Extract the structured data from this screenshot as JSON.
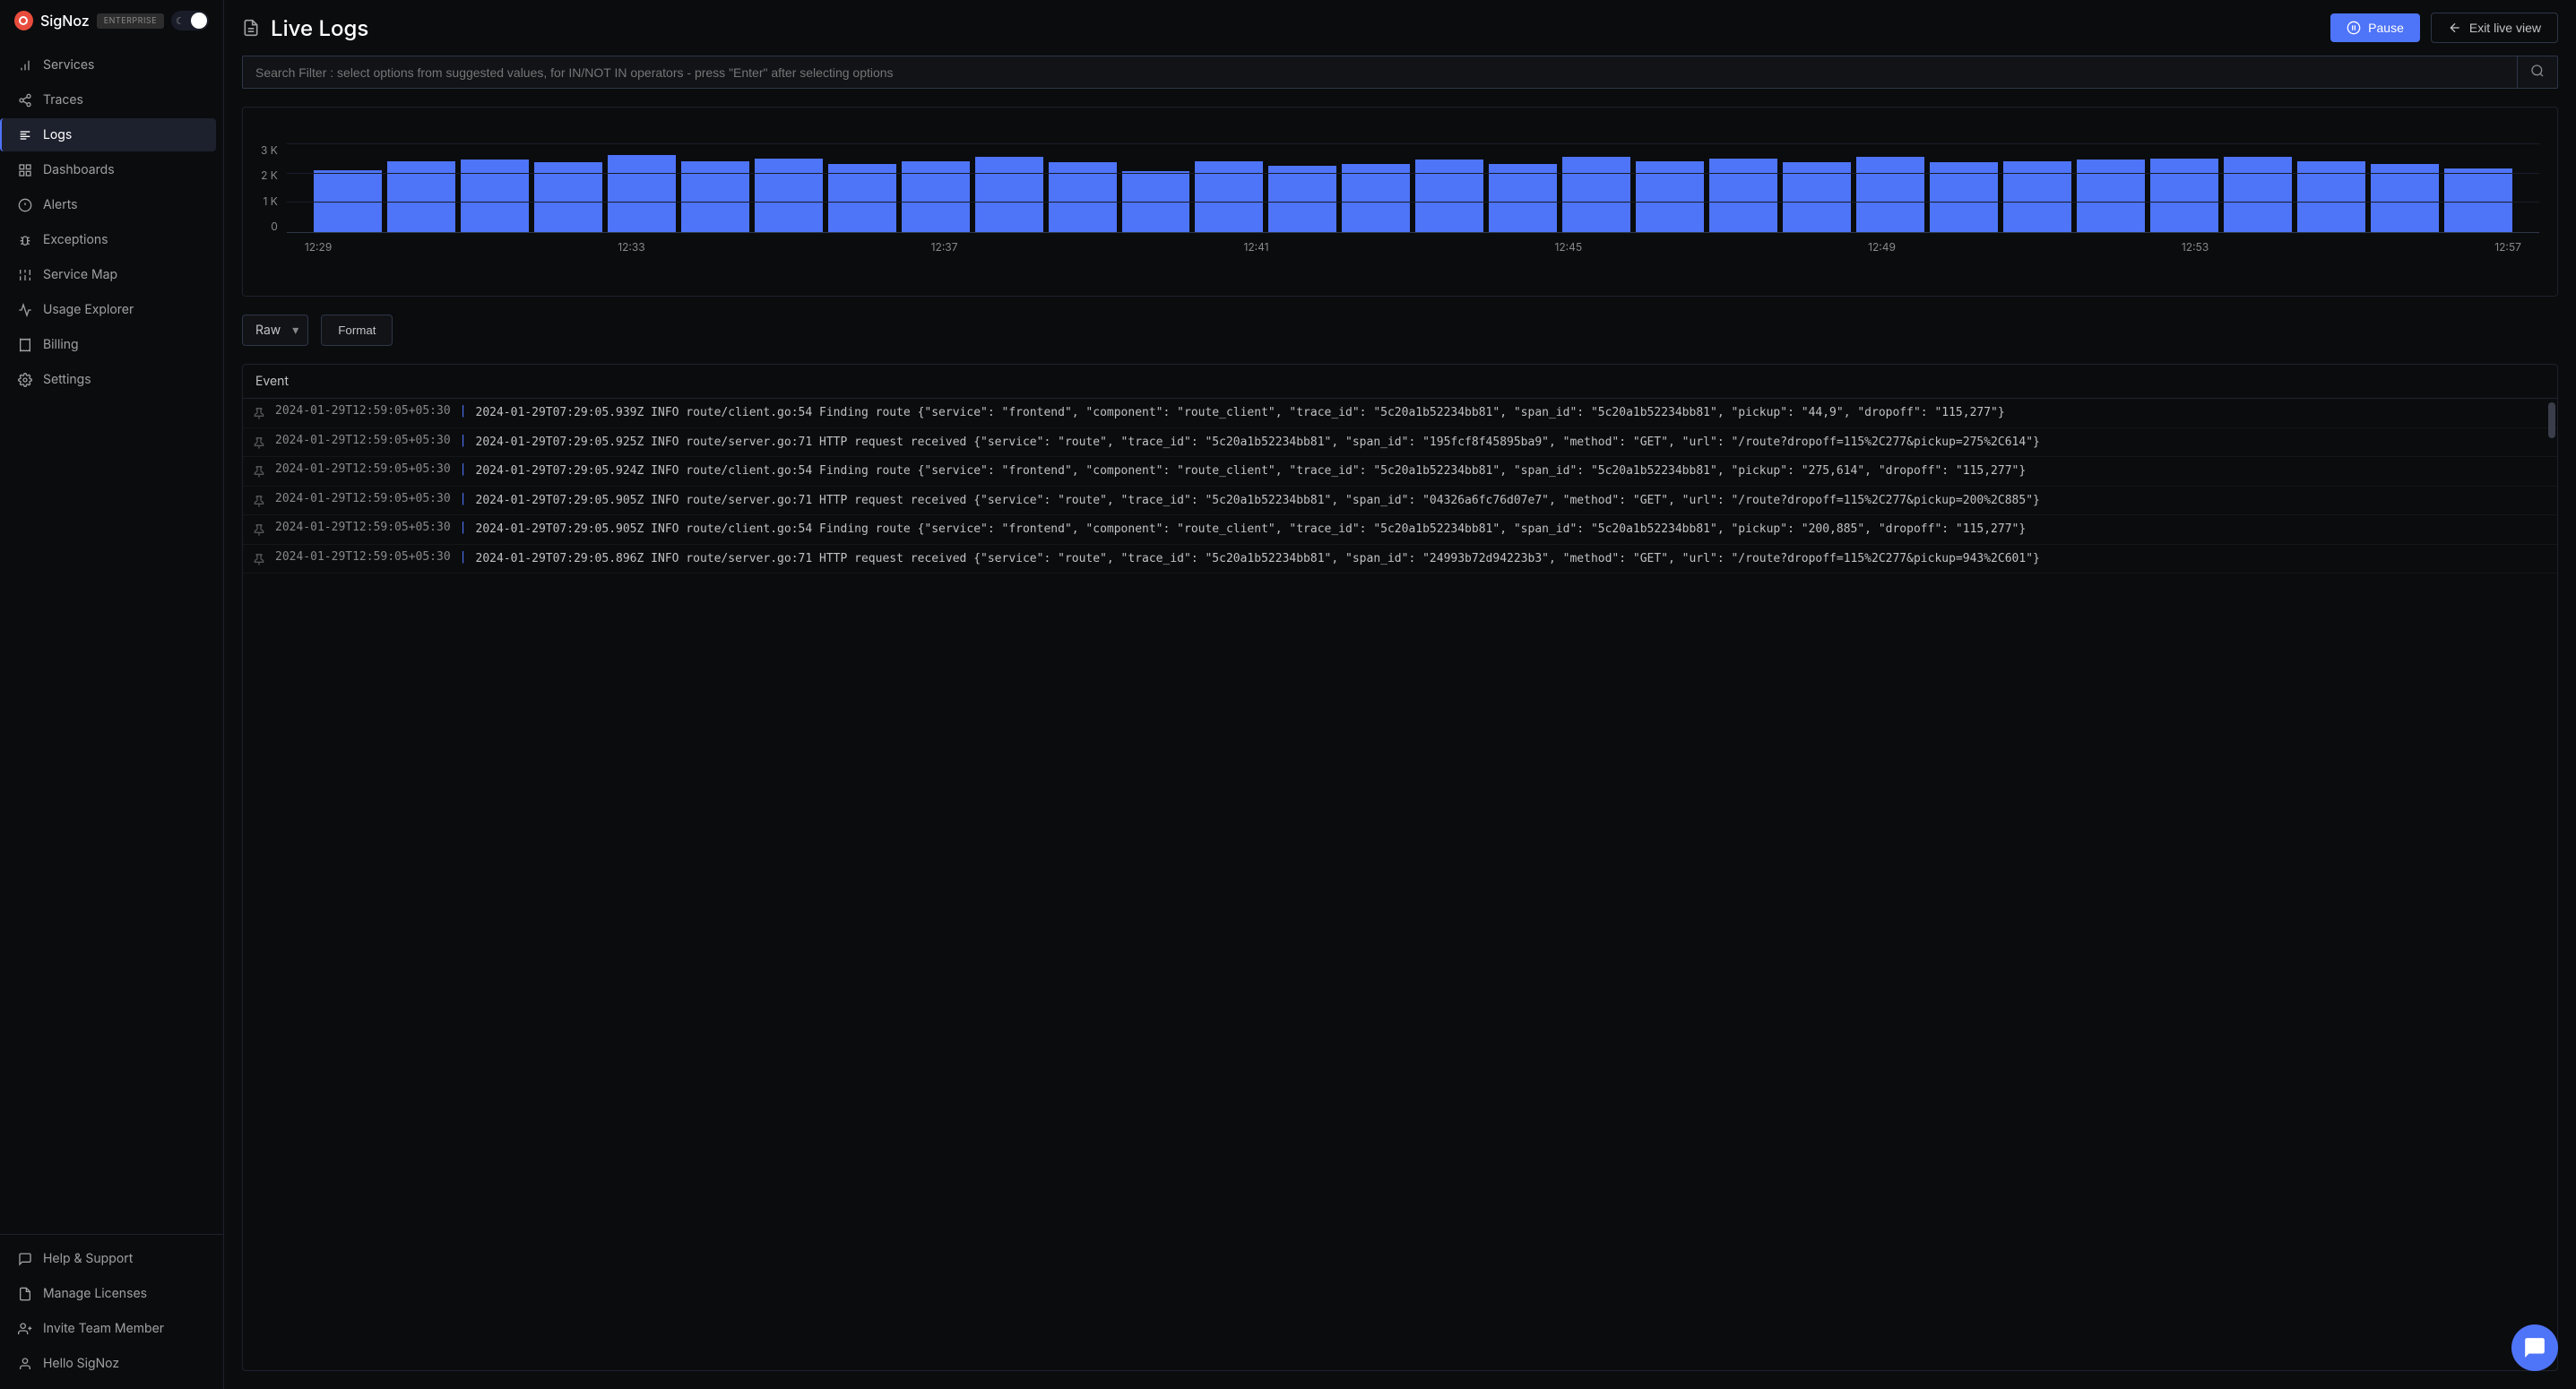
{
  "brand": {
    "name": "SigNoz",
    "badge": "ENTERPRISE"
  },
  "sidebar": {
    "items": [
      {
        "label": "Services",
        "icon": "bar-chart"
      },
      {
        "label": "Traces",
        "icon": "share"
      },
      {
        "label": "Logs",
        "icon": "align-left",
        "active": true
      },
      {
        "label": "Dashboards",
        "icon": "grid"
      },
      {
        "label": "Alerts",
        "icon": "alert"
      },
      {
        "label": "Exceptions",
        "icon": "bug"
      },
      {
        "label": "Service Map",
        "icon": "sliders"
      },
      {
        "label": "Usage Explorer",
        "icon": "activity"
      },
      {
        "label": "Billing",
        "icon": "receipt"
      },
      {
        "label": "Settings",
        "icon": "gear"
      }
    ],
    "footer_items": [
      {
        "label": "Help & Support",
        "icon": "message"
      },
      {
        "label": "Manage Licenses",
        "icon": "file"
      },
      {
        "label": "Invite Team Member",
        "icon": "user-plus"
      },
      {
        "label": "Hello SigNoz",
        "icon": "user"
      }
    ]
  },
  "header": {
    "title": "Live Logs",
    "pause_label": "Pause",
    "exit_label": "Exit live view"
  },
  "search": {
    "placeholder": "Search Filter : select options from suggested values, for IN/NOT IN operators - press \"Enter\" after selecting options"
  },
  "chart": {
    "type": "bar",
    "bar_color": "#4e74f8",
    "background_color": "#0b0c0e",
    "grid_color": "#1a1d29",
    "axis_color": "#2d3748",
    "label_color": "#888888",
    "label_fontsize": 12,
    "ylim": [
      0,
      3000
    ],
    "y_ticks": [
      "3 K",
      "2 K",
      "1 K",
      "0"
    ],
    "x_ticks": [
      "12:29",
      "12:33",
      "12:37",
      "12:41",
      "12:45",
      "12:49",
      "12:53",
      "12:57"
    ],
    "values": [
      2100,
      2400,
      2450,
      2350,
      2600,
      2400,
      2500,
      2300,
      2400,
      2550,
      2350,
      2050,
      2400,
      2250,
      2300,
      2450,
      2300,
      2550,
      2400,
      2500,
      2350,
      2550,
      2350,
      2400,
      2450,
      2500,
      2550,
      2400,
      2300,
      2150
    ],
    "bar_width": 0.85
  },
  "controls": {
    "view_mode": "Raw",
    "format_label": "Format"
  },
  "logs": {
    "header_label": "Event",
    "rows": [
      {
        "ts": "2024-01-29T12:59:05+05:30",
        "body": "2024-01-29T07:29:05.939Z INFO route/client.go:54 Finding route {\"service\": \"frontend\", \"component\": \"route_client\", \"trace_id\": \"5c20a1b52234bb81\", \"span_id\": \"5c20a1b52234bb81\", \"pickup\": \"44,9\", \"dropoff\": \"115,277\"}"
      },
      {
        "ts": "2024-01-29T12:59:05+05:30",
        "body": "2024-01-29T07:29:05.925Z INFO route/server.go:71 HTTP request received {\"service\": \"route\", \"trace_id\": \"5c20a1b52234bb81\", \"span_id\": \"195fcf8f45895ba9\", \"method\": \"GET\", \"url\": \"/route?dropoff=115%2C277&pickup=275%2C614\"}"
      },
      {
        "ts": "2024-01-29T12:59:05+05:30",
        "body": "2024-01-29T07:29:05.924Z INFO route/client.go:54 Finding route {\"service\": \"frontend\", \"component\": \"route_client\", \"trace_id\": \"5c20a1b52234bb81\", \"span_id\": \"5c20a1b52234bb81\", \"pickup\": \"275,614\", \"dropoff\": \"115,277\"}"
      },
      {
        "ts": "2024-01-29T12:59:05+05:30",
        "body": "2024-01-29T07:29:05.905Z INFO route/server.go:71 HTTP request received {\"service\": \"route\", \"trace_id\": \"5c20a1b52234bb81\", \"span_id\": \"04326a6fc76d07e7\", \"method\": \"GET\", \"url\": \"/route?dropoff=115%2C277&pickup=200%2C885\"}"
      },
      {
        "ts": "2024-01-29T12:59:05+05:30",
        "body": "2024-01-29T07:29:05.905Z INFO route/client.go:54 Finding route {\"service\": \"frontend\", \"component\": \"route_client\", \"trace_id\": \"5c20a1b52234bb81\", \"span_id\": \"5c20a1b52234bb81\", \"pickup\": \"200,885\", \"dropoff\": \"115,277\"}"
      },
      {
        "ts": "2024-01-29T12:59:05+05:30",
        "body": "2024-01-29T07:29:05.896Z INFO route/server.go:71 HTTP request received {\"service\": \"route\", \"trace_id\": \"5c20a1b52234bb81\", \"span_id\": \"24993b72d94223b3\", \"method\": \"GET\", \"url\": \"/route?dropoff=115%2C277&pickup=943%2C601\"}"
      }
    ]
  }
}
